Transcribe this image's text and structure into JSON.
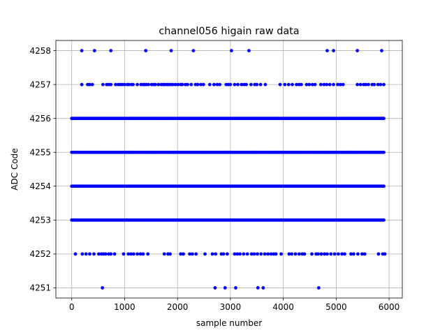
{
  "chart_data": {
    "type": "scatter",
    "title": "channel056 higain raw data",
    "xlabel": "sample number",
    "ylabel": "ADC Code",
    "xlim": [
      -300,
      6250
    ],
    "ylim": [
      4250.7,
      4258.3
    ],
    "xticks": [
      0,
      1000,
      2000,
      3000,
      4000,
      5000,
      6000
    ],
    "yticks": [
      4251,
      4252,
      4253,
      4254,
      4255,
      4256,
      4257,
      4258
    ],
    "grid": true,
    "marker_color": "#0000ff",
    "n_samples": 5920,
    "series": [
      {
        "x_dense_range": [
          0,
          5920
        ],
        "dense_levels": [
          4253,
          4254,
          4255,
          4256
        ],
        "sparse": [
          {
            "y": 4258,
            "x": [
              190,
              430,
              740,
              1400,
              1880,
              2300,
              3020,
              3350,
              4830,
              4950,
              5400,
              5860
            ]
          },
          {
            "y": 4257,
            "x": [
              190,
              300,
              340,
              390,
              590,
              660,
              700,
              740,
              830,
              880,
              920,
              960,
              1000,
              1050,
              1080,
              1130,
              1160,
              1240,
              1310,
              1350,
              1380,
              1410,
              1450,
              1510,
              1550,
              1580,
              1640,
              1690,
              1730,
              1760,
              1800,
              1830,
              1870,
              1910,
              1960,
              2010,
              2060,
              2090,
              2150,
              2190,
              2260,
              2340,
              2380,
              2440,
              2490,
              2610,
              2690,
              2750,
              2800,
              2920,
              2960,
              3000,
              3080,
              3140,
              3210,
              3260,
              3300,
              3390,
              3460,
              3500,
              3570,
              3660,
              3940,
              4030,
              4100,
              4170,
              4250,
              4300,
              4340,
              4440,
              4490,
              4550,
              4600,
              4710,
              4770,
              4820,
              4880,
              4950,
              5030,
              5080,
              5130,
              5400,
              5460,
              5520,
              5560,
              5610,
              5680,
              5720,
              5790,
              5840,
              5900
            ]
          },
          {
            "y": 4252,
            "x": [
              70,
              200,
              270,
              340,
              420,
              510,
              560,
              600,
              640,
              700,
              740,
              810,
              980,
              1070,
              1120,
              1170,
              1240,
              1300,
              1350,
              1440,
              1750,
              1820,
              1860,
              2060,
              2110,
              2230,
              2280,
              2350,
              2520,
              2660,
              2720,
              2830,
              2870,
              2940,
              3080,
              3130,
              3180,
              3250,
              3320,
              3400,
              3450,
              3510,
              3580,
              3650,
              3710,
              3770,
              3820,
              3860,
              3960,
              4110,
              4160,
              4230,
              4300,
              4360,
              4400,
              4540,
              4620,
              4660,
              4720,
              4780,
              4830,
              4900,
              4970,
              5040,
              5110,
              5160,
              5280,
              5330,
              5410,
              5490,
              5540,
              5800,
              5880,
              5920
            ]
          },
          {
            "y": 4251,
            "x": [
              580,
              2710,
              2900,
              3100,
              3520,
              3620,
              4670
            ]
          }
        ]
      }
    ]
  }
}
